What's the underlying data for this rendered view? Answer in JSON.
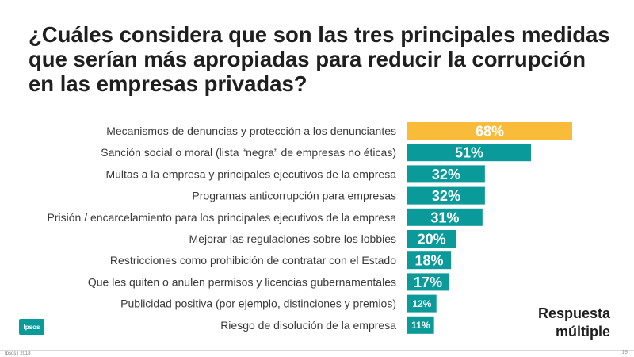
{
  "slide": {
    "title": "¿Cuáles considera que son las tres principales medidas que serían más apropiadas para reducir la corrupción en las empresas privadas?",
    "note_line1": "Respuesta",
    "note_line2": "múltiple",
    "logo_text": "Ipsos",
    "copyright": "Ipsos | 2018",
    "page_number": "19"
  },
  "chart_data": {
    "type": "bar",
    "orientation": "horizontal",
    "title": "¿Cuáles considera que son las tres principales medidas que serían más apropiadas para reducir la corrupción en las empresas privadas?",
    "categories": [
      "Mecanismos de denuncias y protección a los denunciantes",
      "Sanción social o moral (lista “negra” de empresas no éticas)",
      "Multas a la empresa y principales ejecutivos de la empresa",
      "Programas anticorrupción para empresas",
      "Prisión / encarcelamiento para los principales ejecutivos de la empresa",
      "Mejorar las regulaciones sobre los lobbies",
      "Restricciones como prohibición de contratar con el Estado",
      "Que les quiten o anulen permisos y licencias gubernamentales",
      "Publicidad positiva (por ejemplo, distinciones y premios)",
      "Riesgo de disolución de la empresa"
    ],
    "values": [
      68,
      51,
      32,
      32,
      31,
      20,
      18,
      17,
      12,
      11
    ],
    "value_labels": [
      "68%",
      "51%",
      "32%",
      "32%",
      "31%",
      "20%",
      "18%",
      "17%",
      "12%",
      "11%"
    ],
    "unit": "%",
    "xlim": [
      0,
      68
    ],
    "grid": false,
    "legend": "none",
    "colors": {
      "highlight": "#F8BC3A",
      "default": "#0A9A9A"
    },
    "highlight_index": 0
  }
}
